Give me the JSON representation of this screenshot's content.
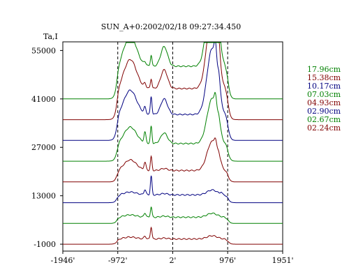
{
  "chart_data": {
    "type": "line",
    "title": "SUN_A+0:2002/02/18 09:27:34.450",
    "ylabel": "Ta,I",
    "xlabel": "",
    "x_ticks": [
      "-1946'",
      "-972'",
      "2'",
      "976'",
      "1951'"
    ],
    "y_ticks": [
      "-1000",
      "13000",
      "27000",
      "41000",
      "55000"
    ],
    "xlim": [
      -1946,
      1951
    ],
    "ylim": [
      -3000,
      57500
    ],
    "dashed_x": [
      -972,
      2,
      976
    ],
    "grid": false,
    "legend_position": "right",
    "series": [
      {
        "name": "02.24cm",
        "color": "#800000",
        "baseline": -1000,
        "s": 1.0
      },
      {
        "name": "02.67cm",
        "color": "#008000",
        "baseline": 5000,
        "s": 1.2
      },
      {
        "name": "02.90cm",
        "color": "#000080",
        "baseline": 11000,
        "s": 1.5
      },
      {
        "name": "04.93cm",
        "color": "#800000",
        "baseline": 17000,
        "s": 2.2
      },
      {
        "name": "07.03cm",
        "color": "#008000",
        "baseline": 23000,
        "s": 3.4
      },
      {
        "name": "10.17cm",
        "color": "#000080",
        "baseline": 29000,
        "s": 5.0
      },
      {
        "name": "15.38cm",
        "color": "#800000",
        "baseline": 35000,
        "s": 6.0
      },
      {
        "name": "17.96cm",
        "color": "#008000",
        "baseline": 41000,
        "s": 6.3
      }
    ]
  }
}
